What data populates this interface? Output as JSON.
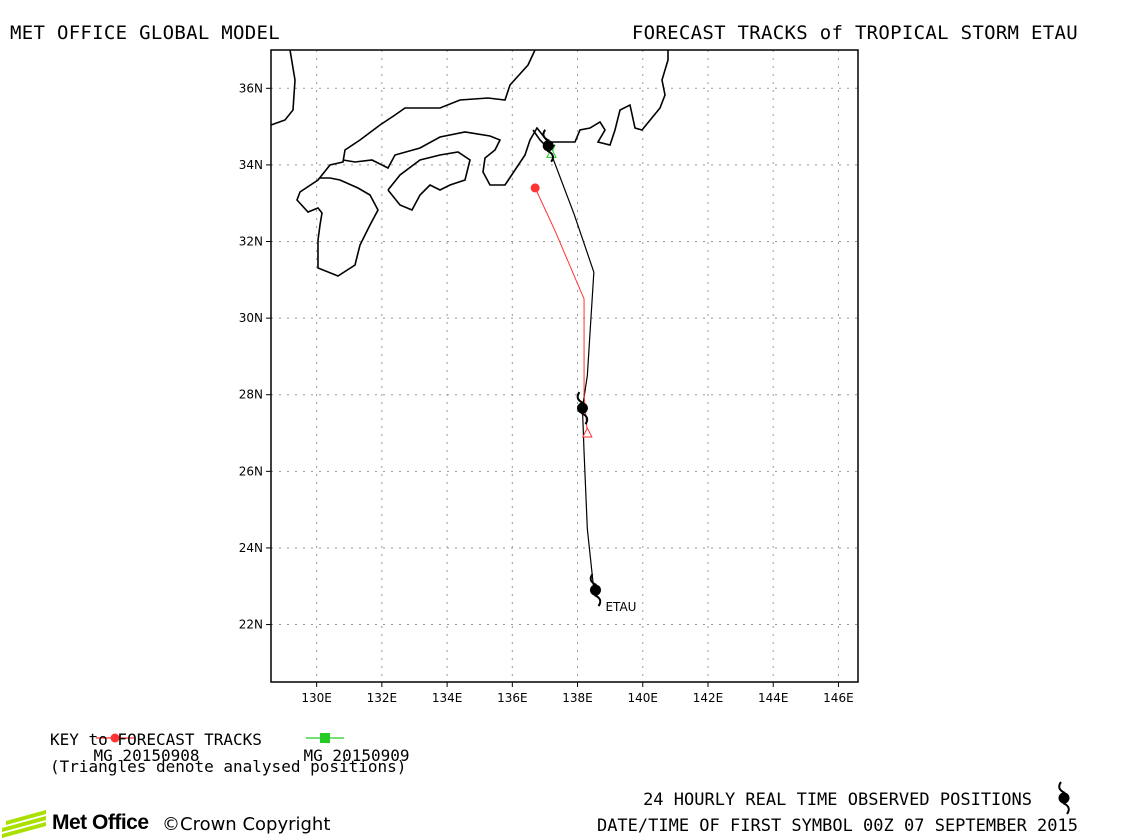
{
  "header": {
    "left_title": "MET OFFICE GLOBAL MODEL",
    "right_title": "FORECAST TRACKS of TROPICAL STORM ETAU"
  },
  "map": {
    "lon_range": [
      128.6,
      146.6
    ],
    "lat_range": [
      20.5,
      37.0
    ],
    "lon_ticks": [
      "130E",
      "132E",
      "134E",
      "136E",
      "138E",
      "140E",
      "142E",
      "144E",
      "146E"
    ],
    "lat_ticks": [
      "22N",
      "24N",
      "26N",
      "28N",
      "30N",
      "32N",
      "34N",
      "36N"
    ],
    "storm_label": "ETAU",
    "observed_positions": [
      {
        "lon": 138.55,
        "lat": 22.9
      },
      {
        "lon": 138.15,
        "lat": 27.65
      },
      {
        "lon": 137.1,
        "lat": 34.5
      }
    ],
    "observed_track": [
      [
        138.5,
        22.9
      ],
      [
        138.3,
        24.5
      ],
      [
        138.2,
        26.5
      ],
      [
        138.15,
        27.65
      ],
      [
        138.3,
        28.5
      ],
      [
        138.5,
        31.2
      ],
      [
        137.9,
        32.7
      ],
      [
        137.1,
        34.5
      ]
    ],
    "forecast_tracks": [
      {
        "name": "MG 20150908",
        "color": "#ff3333",
        "analysed": {
          "lon": 138.3,
          "lat": 27.0
        },
        "points": [
          [
            138.3,
            27.0
          ],
          [
            138.2,
            28.0
          ],
          [
            138.2,
            30.5
          ],
          [
            137.3,
            32.3
          ],
          [
            136.7,
            33.4
          ]
        ]
      },
      {
        "name": "MG 20150909",
        "color": "#22cc22",
        "analysed": {
          "lon": 137.2,
          "lat": 34.3
        },
        "points": [
          [
            137.2,
            34.3
          ],
          [
            137.3,
            34.5
          ]
        ]
      }
    ]
  },
  "legend": {
    "items": [
      {
        "label": "MG 20150908",
        "color": "#ff3333",
        "marker": "circle"
      },
      {
        "label": "MG 20150909",
        "color": "#22cc22",
        "marker": "square"
      }
    ],
    "key_title": "KEY to FORECAST TRACKS",
    "key_note": "(Triangles denote analysed positions)"
  },
  "footer": {
    "logo_text": "Met Office",
    "copyright": "©Crown Copyright",
    "observed_note": "24 HOURLY REAL TIME OBSERVED POSITIONS",
    "datetime": "DATE/TIME OF FIRST SYMBOL 00Z 07 SEPTEMBER 2015",
    "logo_color": "#a8e000"
  }
}
